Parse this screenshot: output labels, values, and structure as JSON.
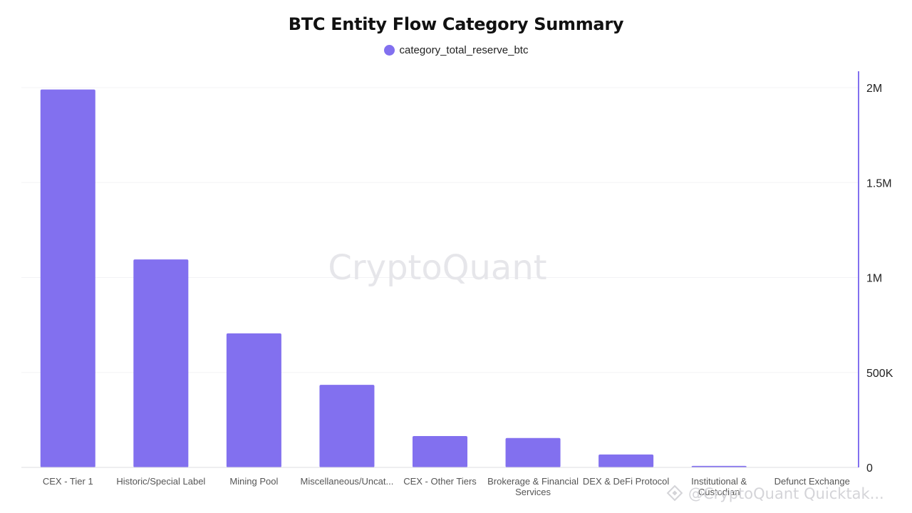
{
  "chart_data": {
    "type": "bar",
    "title": "BTC Entity Flow Category Summary",
    "legend": {
      "position": "top-center",
      "entries": [
        "category_total_reserve_btc"
      ]
    },
    "categories": [
      "CEX - Tier 1",
      "Historic/Special Label",
      "Mining Pool",
      "Miscellaneous/Uncat...",
      "CEX - Other Tiers",
      "Brokerage & Financial Services",
      "DEX & DeFi Protocol",
      "Institutional & Custodian",
      "Defunct Exchange"
    ],
    "series": [
      {
        "name": "category_total_reserve_btc",
        "color": "#8270ef",
        "values": [
          1990000,
          1095000,
          706000,
          435000,
          165000,
          155000,
          68000,
          8000,
          0
        ]
      }
    ],
    "y_axis": {
      "position": "right",
      "range": [
        0,
        2000000
      ],
      "ticks": [
        0,
        500000,
        1000000,
        1500000,
        2000000
      ],
      "tick_labels": [
        "0",
        "500K",
        "1M",
        "1.5M",
        "2M"
      ]
    },
    "grid": true
  },
  "watermark": {
    "text": "CryptoQuant",
    "credit": "@CryptoQuant Quicktak..."
  }
}
